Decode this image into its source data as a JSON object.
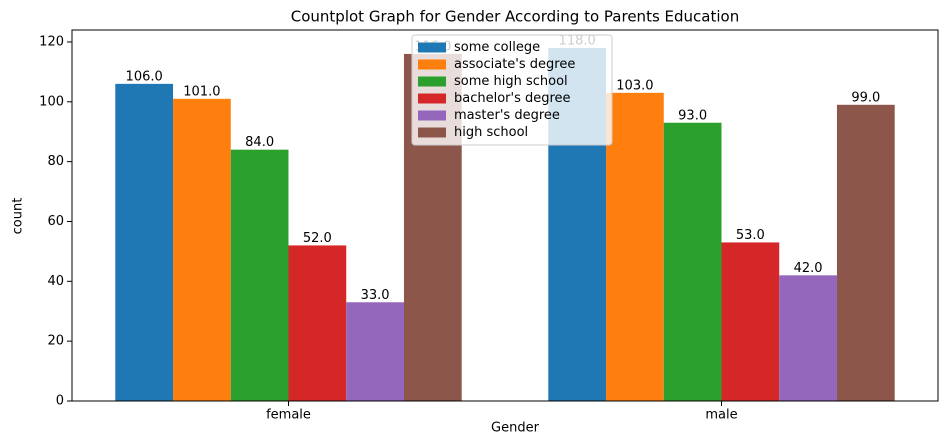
{
  "chart_data": {
    "type": "bar",
    "title": "Countplot Graph for Gender According to Parents Education",
    "x_label": "Gender",
    "y_label": "count",
    "categories": [
      "female",
      "male"
    ],
    "series": [
      {
        "name": "some college",
        "color": "#1f77b4",
        "values": [
          106,
          118
        ],
        "value_labels": [
          "106.0",
          "118.0"
        ]
      },
      {
        "name": "associate's degree",
        "color": "#ff7f0e",
        "values": [
          101,
          103
        ],
        "value_labels": [
          "101.0",
          "103.0"
        ]
      },
      {
        "name": "some high school",
        "color": "#2ca02c",
        "values": [
          84,
          93
        ],
        "value_labels": [
          "84.0",
          "93.0"
        ]
      },
      {
        "name": "bachelor's degree",
        "color": "#d62728",
        "values": [
          52,
          53
        ],
        "value_labels": [
          "52.0",
          "53.0"
        ]
      },
      {
        "name": "master's degree",
        "color": "#9467bd",
        "values": [
          33,
          42
        ],
        "value_labels": [
          "33.0",
          "42.0"
        ]
      },
      {
        "name": "high school",
        "color": "#8c564b",
        "values": [
          116,
          99
        ],
        "value_labels": [
          "116.0",
          "99.0"
        ]
      }
    ],
    "ylim": [
      0,
      124
    ],
    "yticks": [
      0,
      20,
      40,
      60,
      80,
      100,
      120
    ],
    "legend": "upper center"
  }
}
